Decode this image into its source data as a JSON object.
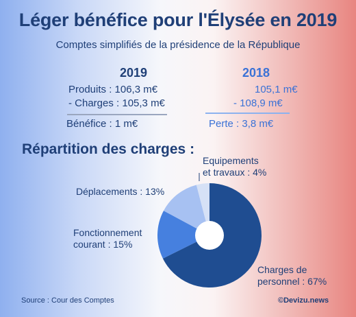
{
  "title": "Léger bénéfice pour l'Élysée en 2019",
  "subtitle": "Comptes simplifiés de la présidence de la République",
  "accounts": {
    "y2019": {
      "year": "2019",
      "revenue": "Produits : 106,3 m€",
      "charges": "- Charges : 105,3 m€",
      "result": "Bénéfice : 1 m€"
    },
    "y2018": {
      "year": "2018",
      "revenue": "105,1 m€",
      "charges": "- 108,9 m€",
      "result": "Perte : 3,8 m€"
    }
  },
  "chart_title": "Répartition des charges :",
  "chart_data": {
    "type": "pie",
    "title": "Répartition des charges :",
    "series": [
      {
        "name": "Charges de personnel",
        "value": 67,
        "label": "Charges de personnel : 67%",
        "color": "#1f4d91"
      },
      {
        "name": "Fonctionnement courant",
        "value": 15,
        "label": "Fonctionnement courant : 15%",
        "color": "#4680df"
      },
      {
        "name": "Déplacements",
        "value": 13,
        "label": "Déplacements : 13%",
        "color": "#a7c1f2"
      },
      {
        "name": "Equipements et travaux",
        "value": 4,
        "label": "Equipements et travaux : 4%",
        "color": "#d6e1f6"
      }
    ],
    "donut_hole": true
  },
  "labels": {
    "personnel": [
      "Charges de",
      "personnel : 67%"
    ],
    "fonctionnement": [
      "Fonctionnement",
      "courant : 15%"
    ],
    "deplacements": [
      "Déplacements : 13%"
    ],
    "equipements": [
      "Equipements",
      "et travaux : 4%"
    ]
  },
  "source": "Source : Cour des Comptes",
  "brand": "©Devizu.news"
}
